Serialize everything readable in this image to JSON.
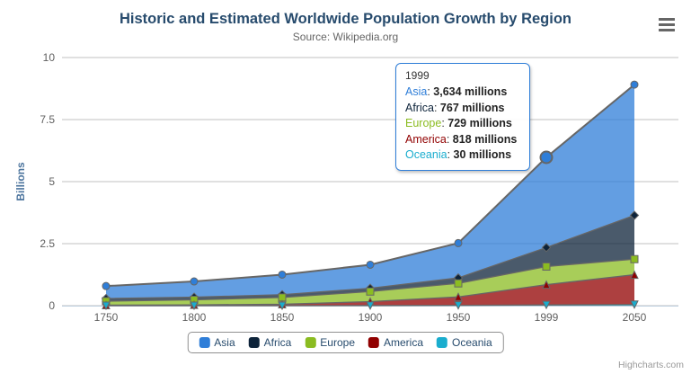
{
  "chart": {
    "title": "Historic and Estimated Worldwide Population Growth by Region",
    "subtitle": "Source: Wikipedia.org",
    "credit": "Highcharts.com",
    "menu_icon": "context-menu"
  },
  "chart_data": {
    "type": "area",
    "stacking": "normal",
    "title": "Historic and Estimated Worldwide Population Growth by Region",
    "subtitle": "Source: Wikipedia.org",
    "categories": [
      "1750",
      "1800",
      "1850",
      "1900",
      "1950",
      "1999",
      "2050"
    ],
    "xlabel": "",
    "ylabel": "Billions",
    "unit": "millions",
    "ylim": [
      0,
      10
    ],
    "yticks": [
      0,
      2.5,
      5,
      7.5,
      10
    ],
    "ytick_labels": [
      "0",
      "2.5",
      "5",
      "7.5",
      "10"
    ],
    "grid": true,
    "legend_position": "bottom",
    "series": [
      {
        "name": "Asia",
        "color": "#2f7ed8",
        "marker": "circle",
        "values": [
          502,
          635,
          809,
          947,
          1402,
          3634,
          5268
        ]
      },
      {
        "name": "Africa",
        "color": "#0d233a",
        "marker": "diamond",
        "values": [
          106,
          107,
          111,
          133,
          221,
          767,
          1766
        ]
      },
      {
        "name": "Europe",
        "color": "#8bbc21",
        "marker": "square",
        "values": [
          163,
          203,
          276,
          408,
          547,
          729,
          628
        ]
      },
      {
        "name": "America",
        "color": "#910000",
        "marker": "triangle",
        "values": [
          18,
          31,
          54,
          156,
          339,
          818,
          1201
        ]
      },
      {
        "name": "Oceania",
        "color": "#1aadce",
        "marker": "triangle-down",
        "values": [
          2,
          2,
          2,
          6,
          13,
          30,
          46
        ]
      }
    ],
    "values_unit_note": "values in millions, axis in billions"
  },
  "tooltip": {
    "header": "1999",
    "category_index": 5,
    "hovered_series": "Asia",
    "border_color": "#2f7ed8",
    "rows": [
      {
        "name": "Asia",
        "color": "#2f7ed8",
        "value": "3,634 millions"
      },
      {
        "name": "Africa",
        "color": "#0d233a",
        "value": "767 millions"
      },
      {
        "name": "Europe",
        "color": "#8bbc21",
        "value": "729 millions"
      },
      {
        "name": "America",
        "color": "#910000",
        "value": "818 millions"
      },
      {
        "name": "Oceania",
        "color": "#1aadce",
        "value": "30 millions"
      }
    ]
  },
  "colors": {
    "title_text": "#274b6d",
    "subtitle_text": "#666666",
    "axis_text": "#606060",
    "yaxis_title_text": "#4d759e",
    "legend_text": "#274b6d",
    "grid_line": "#c0c0c0",
    "axis_line": "#c0d0e0",
    "series_edge_line": "#666666",
    "fill_opacity": "0.75"
  }
}
